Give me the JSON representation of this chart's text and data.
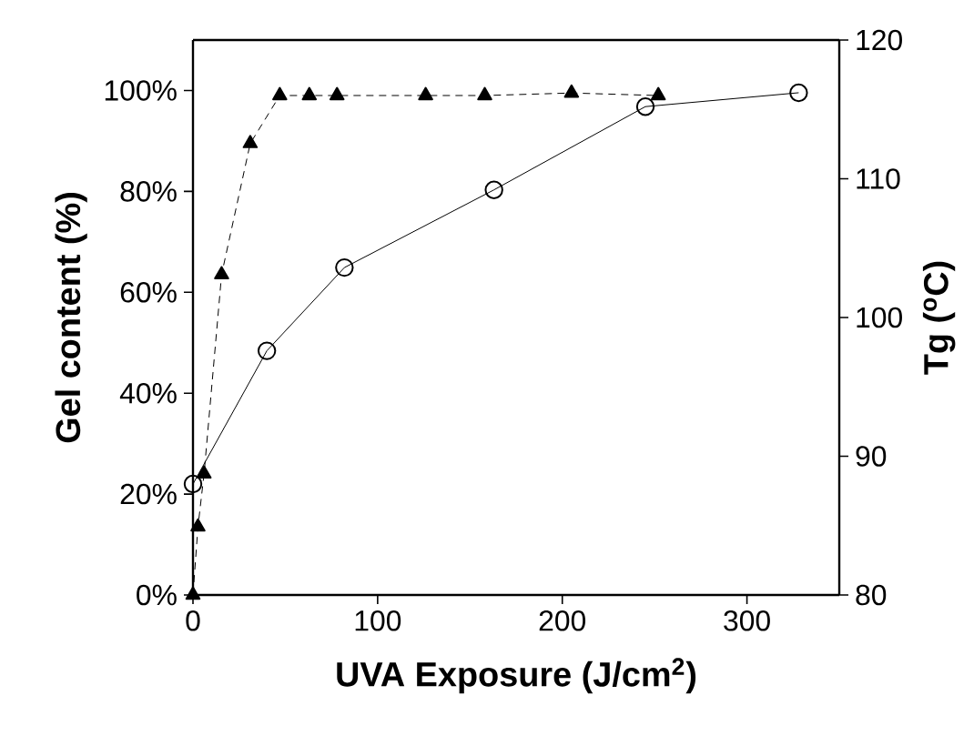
{
  "chart_data": {
    "type": "line",
    "xlabel": "UVA Exposure (J/cm$^{2}$)",
    "ylabel": "Gel content (%)",
    "y2label": "Tg ($^{o}$C)",
    "xlim": [
      0,
      350
    ],
    "xticks": [
      0,
      100,
      200,
      300
    ],
    "ylim": [
      0,
      110
    ],
    "yticks": [
      {
        "value": 0,
        "label": "0%"
      },
      {
        "value": 20,
        "label": "20%"
      },
      {
        "value": 40,
        "label": "40%"
      },
      {
        "value": 60,
        "label": "60%"
      },
      {
        "value": 80,
        "label": "80%"
      },
      {
        "value": 100,
        "label": "100%"
      }
    ],
    "y2lim": [
      80,
      120
    ],
    "y2ticks": [
      80,
      90,
      100,
      110,
      120
    ],
    "grid": false,
    "series": [
      {
        "color": "#000000",
        "marker": "triangle",
        "line_style": "dashed",
        "x": [
          0,
          2.7,
          6,
          15.5,
          31,
          47,
          63,
          78,
          126,
          158,
          205,
          252
        ],
        "values": [
          0,
          13.5,
          24,
          63.5,
          89.5,
          99,
          99,
          99,
          99,
          99,
          99.5,
          99
        ]
      },
      {
        "color": "#000000",
        "marker": "circle",
        "line_style": "solid",
        "axis": "y2",
        "x": [
          0,
          40,
          82,
          163,
          245,
          328
        ],
        "values": [
          88,
          97.6,
          103.6,
          109.2,
          115.2,
          116.2
        ]
      }
    ]
  }
}
